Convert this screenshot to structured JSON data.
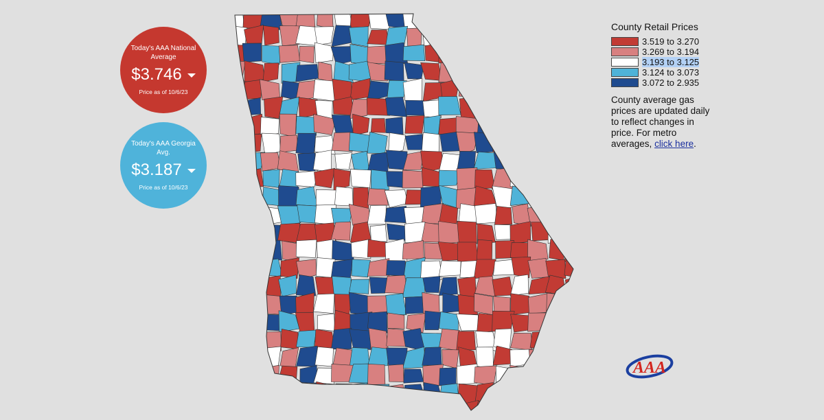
{
  "national": {
    "label": "Today's AAA National Average",
    "price": "$3.746",
    "asof": "Price as of 10/6/23",
    "color": "#c5382f"
  },
  "georgia": {
    "label": "Today's AAA Georgia Avg.",
    "price": "$3.187",
    "asof": "Price as of 10/6/23",
    "color": "#4fb3da"
  },
  "legend": {
    "title": "County Retail Prices",
    "ranges": [
      {
        "label": "3.519 to 3.270",
        "color": "#c23b34"
      },
      {
        "label": "3.269 to 3.194",
        "color": "#d88080"
      },
      {
        "label": "3.193 to 3.125",
        "color": "#ffffff",
        "highlighted": true
      },
      {
        "label": "3.124 to 3.073",
        "color": "#4fb3d8"
      },
      {
        "label": "3.072 to 2.935",
        "color": "#1f4b8f"
      }
    ],
    "description_text": "County average gas prices are updated daily to reflect changes in price. For metro averages,",
    "link_text": "click here",
    "description_end": "."
  },
  "map": {
    "region": "Georgia",
    "county_colors": [
      "#c23b34",
      "#d88080",
      "#ffffff",
      "#4fb3d8",
      "#1f4b8f"
    ],
    "outline_color": "#333333"
  },
  "logo": {
    "text": "AAA",
    "icon": "aaa-logo-icon"
  }
}
